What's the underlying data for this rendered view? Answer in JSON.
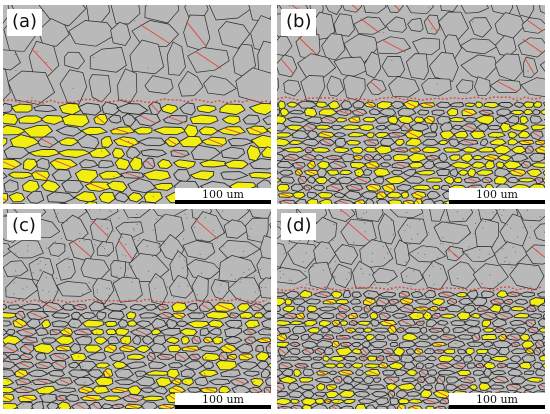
{
  "panels": [
    {
      "label": "(a)",
      "scale_bar": "100 um"
    },
    {
      "label": "(b)",
      "scale_bar": "100 um"
    },
    {
      "label": "(c)",
      "scale_bar": "100 um"
    },
    {
      "label": "(d)",
      "scale_bar": "100 um"
    }
  ],
  "colors": {
    "matrix": "#b9b9b9",
    "phase": "#f2ee12",
    "grain_boundary": "#2b2b2b",
    "twin_boundary": "#e0473c"
  }
}
